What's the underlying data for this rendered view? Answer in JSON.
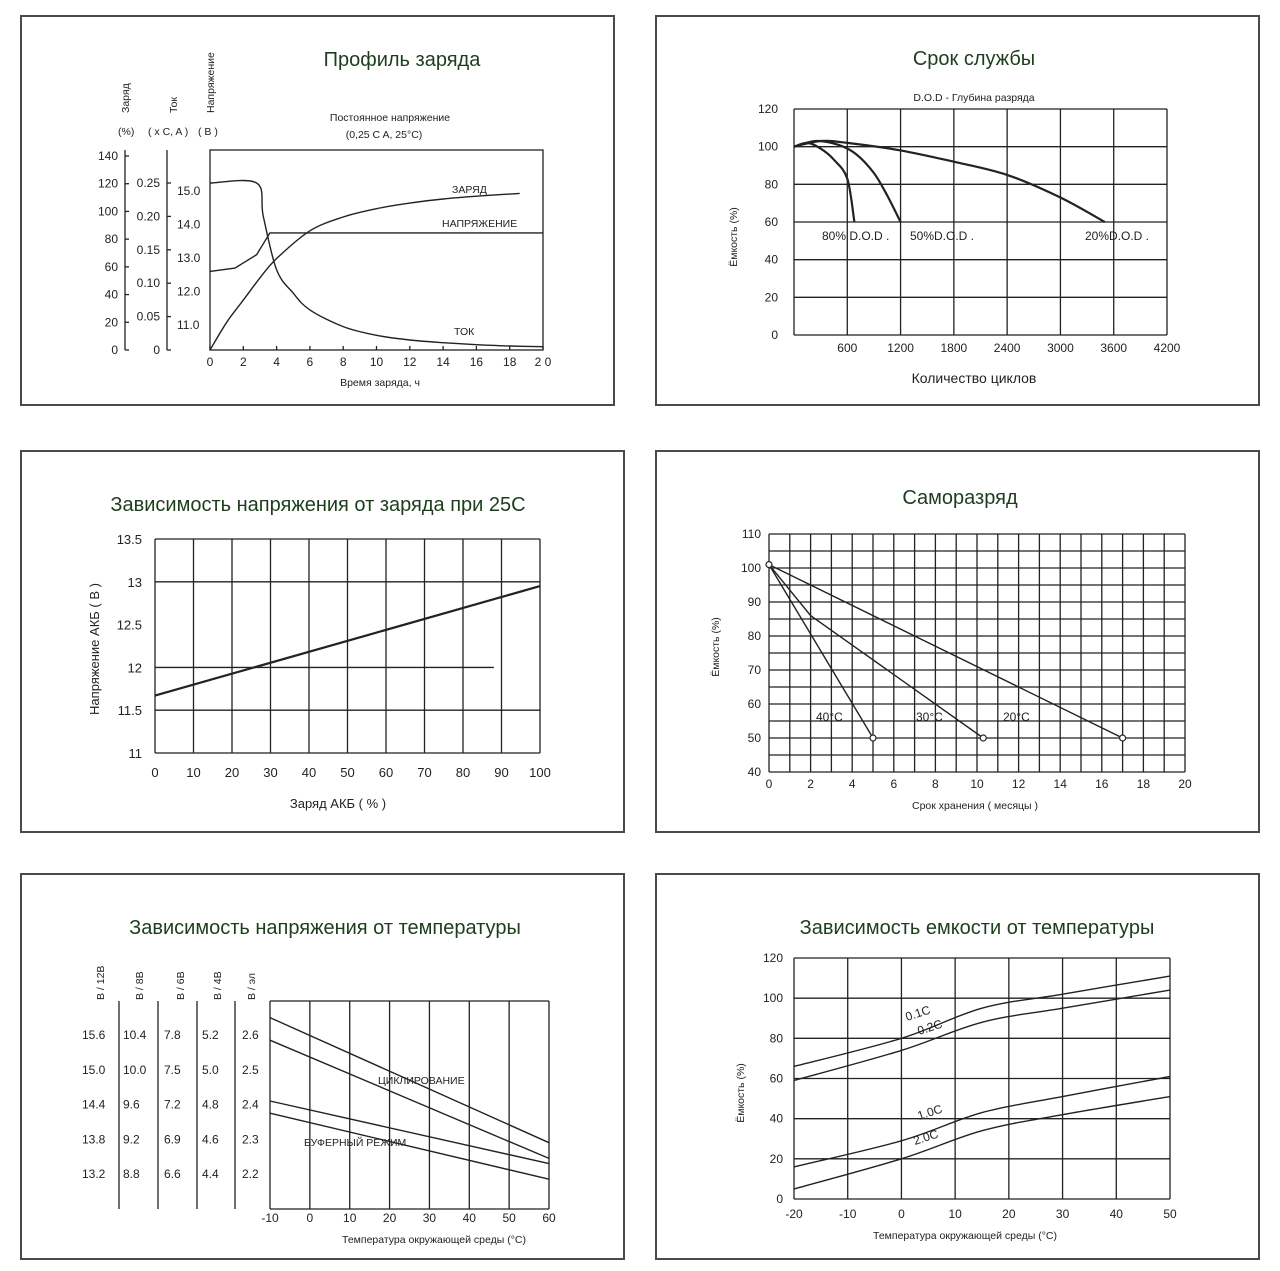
{
  "charts": {
    "c1": {
      "title": "Профиль заряда",
      "ax_charge_title": "Заряд",
      "ax_charge_unit": "(%)",
      "ax_current_title": "Ток",
      "ax_current_unit": "( x C, A )",
      "ax_voltage_title": "Напряжение",
      "ax_voltage_unit": "( B )",
      "note1": "Постоянное напряжение",
      "note2": "(0,25 C A, 25°C)",
      "xlabel": "Время заряда, ч",
      "label_charge": "ЗАРЯД",
      "label_voltage": "НАПРЯЖЕНИЕ",
      "label_current": "ТОК",
      "charge_ticks": [
        "140",
        "120",
        "100",
        "80",
        "60",
        "40",
        "20",
        "0"
      ],
      "current_ticks": [
        "0.25",
        "0.20",
        "0.15",
        "0.10",
        "0.05",
        "0"
      ],
      "voltage_ticks": [
        "15.0",
        "14.0",
        "13.0",
        "12.0",
        "11.0"
      ],
      "x_ticks": [
        "0",
        "2",
        "4",
        "6",
        "8",
        "10",
        "12",
        "14",
        "16",
        "18",
        "2 0"
      ]
    },
    "c2": {
      "title": "Срок службы",
      "subtitle": "D.O.D - Глубина разряда",
      "ylabel": "Ёмкость (%)",
      "xlabel": "Количество циклов",
      "y_ticks": [
        "120",
        "100",
        "80",
        "60",
        "40",
        "20",
        "0"
      ],
      "x_ticks": [
        "600",
        "1200",
        "1800",
        "2400",
        "3000",
        "3600",
        "4200"
      ],
      "s1": "80% D.O.D .",
      "s2": "50%D.O.D .",
      "s3": "20%D.O.D ."
    },
    "c3": {
      "title": "Зависимость напряжения от заряда при 25С",
      "ylabel": "Напряжение АКБ ( В )",
      "xlabel": "Заряд АКБ ( % )",
      "y_ticks": [
        "13.5",
        "13",
        "12.5",
        "12",
        "11.5",
        "11"
      ],
      "x_ticks": [
        "0",
        "10",
        "20",
        "30",
        "40",
        "50",
        "60",
        "70",
        "80",
        "90",
        "100"
      ]
    },
    "c4": {
      "title": "Саморазряд",
      "ylabel": "Ёмкость (%)",
      "xlabel": "Срок хранения ( месяцы )",
      "y_ticks": [
        "110",
        "100",
        "90",
        "80",
        "70",
        "60",
        "50",
        "40"
      ],
      "x_ticks": [
        "0",
        "2",
        "4",
        "6",
        "8",
        "10",
        "12",
        "14",
        "16",
        "18",
        "20"
      ],
      "s1": "40°C",
      "s2": "30°C",
      "s3": "20°C"
    },
    "c5": {
      "title": "Зависимость напряжения от температуры",
      "xlabel": "Температура окружающей среды (°C)",
      "h12": "B / 12B",
      "h8": "B / 8B",
      "h6": "B / 6B",
      "h4": "B / 4B",
      "hc": "B / эл",
      "v12": [
        "15.6",
        "15.0",
        "14.4",
        "13.8",
        "13.2"
      ],
      "v8": [
        "10.4",
        "10.0",
        "9.6",
        "9.2",
        "8.8"
      ],
      "v6": [
        "7.8",
        "7.5",
        "7.2",
        "6.9",
        "6.6"
      ],
      "v4": [
        "5.2",
        "5.0",
        "4.8",
        "4.6",
        "4.4"
      ],
      "vc": [
        "2.6",
        "2.5",
        "2.4",
        "2.3",
        "2.2"
      ],
      "x_ticks": [
        "-10",
        "0",
        "10",
        "20",
        "30",
        "40",
        "50",
        "60"
      ],
      "label_cycle": "ЦИКЛИРОВАНИЕ",
      "label_buffer": "БУФЕРНЫЙ РЕЖИМ"
    },
    "c6": {
      "title": "Зависимость емкости от температуры",
      "ylabel": "Ёмкость (%)",
      "xlabel": "Температура окружающей среды (°C)",
      "y_ticks": [
        "120",
        "100",
        "80",
        "60",
        "40",
        "20",
        "0"
      ],
      "x_ticks": [
        "-20",
        "-10",
        "0",
        "10",
        "20",
        "30",
        "40",
        "50"
      ],
      "s1": "0.1C",
      "s2": "0.2C",
      "s3": "1.0C",
      "s4": "2.0C"
    }
  },
  "chart_data": [
    {
      "type": "line",
      "title": "Профиль заряда",
      "xlabel": "Время заряда, ч",
      "xlim": [
        0,
        20
      ],
      "series": [
        {
          "name": "ЗАРЯД",
          "unit": "%",
          "x": [
            0,
            1,
            2,
            3,
            4,
            6,
            8,
            10,
            12,
            14,
            16,
            18.6
          ],
          "y": [
            0,
            20,
            36,
            52,
            66,
            86,
            96,
            102,
            106,
            109,
            111,
            113
          ]
        },
        {
          "name": "НАПРЯЖЕНИЕ",
          "unit": "B",
          "x": [
            0,
            1.5,
            2.8,
            3.6,
            20
          ],
          "y": [
            12.6,
            12.7,
            13.1,
            13.75,
            13.75
          ]
        },
        {
          "name": "ТОК",
          "unit": "x C, A",
          "x": [
            0,
            2.8,
            3.2,
            4,
            5,
            6,
            8,
            10,
            12,
            14,
            16,
            18,
            20
          ],
          "y": [
            0.25,
            0.25,
            0.2,
            0.12,
            0.085,
            0.06,
            0.035,
            0.022,
            0.015,
            0.011,
            0.008,
            0.006,
            0.005
          ]
        }
      ]
    },
    {
      "type": "line",
      "title": "Срок службы",
      "subtitle": "D.O.D - Глубина разряда",
      "xlabel": "Количество циклов",
      "ylabel": "Ёмкость (%)",
      "xlim": [
        0,
        4200
      ],
      "ylim": [
        0,
        120
      ],
      "series": [
        {
          "name": "80% D.O.D .",
          "x": [
            0,
            150,
            300,
            450,
            600,
            680
          ],
          "y": [
            100,
            102,
            99,
            93,
            83,
            60
          ]
        },
        {
          "name": "50%D.O.D .",
          "x": [
            0,
            250,
            500,
            700,
            900,
            1050,
            1200
          ],
          "y": [
            100,
            103,
            101,
            96,
            86,
            74,
            60
          ]
        },
        {
          "name": "20%D.O.D .",
          "x": [
            0,
            300,
            600,
            1200,
            1800,
            2400,
            3000,
            3500
          ],
          "y": [
            100,
            103,
            102,
            98,
            92,
            85,
            73,
            60
          ]
        }
      ]
    },
    {
      "type": "line",
      "title": "Зависимость напряжения от заряда при 25С",
      "xlabel": "Заряд АКБ ( % )",
      "ylabel": "Напряжение АКБ ( В )",
      "xlim": [
        0,
        100
      ],
      "ylim": [
        11,
        13.5
      ],
      "series": [
        {
          "x": [
            0,
            100
          ],
          "y": [
            11.67,
            12.95
          ]
        },
        {
          "x": [
            0,
            88
          ],
          "y": [
            12.0,
            12.0
          ]
        }
      ]
    },
    {
      "type": "line",
      "title": "Саморазряд",
      "xlabel": "Срок хранения ( месяцы )",
      "ylabel": "Ёмкость (%)",
      "xlim": [
        0,
        20
      ],
      "ylim": [
        40,
        110
      ],
      "series": [
        {
          "name": "40°C",
          "x": [
            0,
            5
          ],
          "y": [
            101,
            50
          ]
        },
        {
          "name": "30°C",
          "x": [
            0,
            2,
            10.3
          ],
          "y": [
            101,
            86,
            50
          ]
        },
        {
          "name": "20°C",
          "x": [
            0,
            17
          ],
          "y": [
            101,
            50
          ]
        }
      ]
    },
    {
      "type": "line",
      "title": "Зависимость напряжения от температуры",
      "xlabel": "Температура окружающей среды (°C)",
      "xlim": [
        -10,
        60
      ],
      "series": [
        {
          "name": "ЦИКЛИРОВАНИЕ",
          "x": [
            -10,
            60
          ],
          "y": [
            2.65,
            2.29
          ]
        },
        {
          "x": [
            -10,
            60
          ],
          "y": [
            2.585,
            2.245
          ]
        },
        {
          "name": "БУФЕРНЫЙ РЕЖИМ",
          "x": [
            -10,
            60
          ],
          "y": [
            2.41,
            2.23
          ]
        },
        {
          "x": [
            -10,
            60
          ],
          "y": [
            2.375,
            2.185
          ]
        }
      ]
    },
    {
      "type": "line",
      "title": "Зависимость емкости от температуры",
      "xlabel": "Температура окружающей среды (°C)",
      "ylabel": "Ёмкость (%)",
      "xlim": [
        -20,
        50
      ],
      "ylim": [
        0,
        120
      ],
      "series": [
        {
          "name": "0.1C",
          "x": [
            -20,
            0,
            15,
            30,
            50
          ],
          "y": [
            66,
            80,
            95,
            102,
            111
          ]
        },
        {
          "name": "0.2C",
          "x": [
            -20,
            0,
            15,
            30,
            50
          ],
          "y": [
            59,
            74,
            88,
            95,
            104
          ]
        },
        {
          "name": "1.0C",
          "x": [
            -20,
            0,
            15,
            30,
            50
          ],
          "y": [
            16,
            29,
            43,
            51,
            61
          ]
        },
        {
          "name": "2.0C",
          "x": [
            -20,
            0,
            15,
            30,
            50
          ],
          "y": [
            5,
            20,
            34,
            42,
            51
          ]
        }
      ]
    }
  ]
}
